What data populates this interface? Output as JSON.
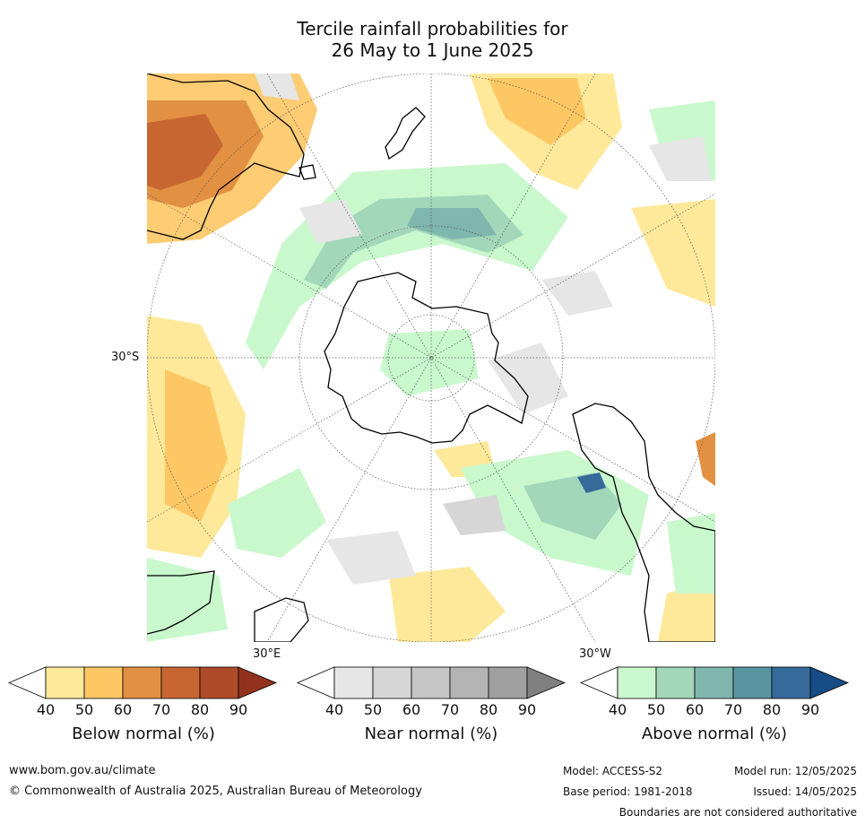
{
  "title_line1": "Tercile rainfall probabilities for",
  "title_line2": "26 May to 1 June 2025",
  "map": {
    "lat_label": "30°S",
    "lon_label_east": "30°E",
    "lon_label_west": "30°W"
  },
  "colorbars": [
    {
      "title": "Below normal (%)",
      "ticks": [
        "40",
        "50",
        "60",
        "70",
        "80",
        "90"
      ],
      "colors": [
        "#ffffff",
        "#fee99a",
        "#fdc764",
        "#e29042",
        "#c86632",
        "#ad4b28",
        "#93321c"
      ]
    },
    {
      "title": "Near normal (%)",
      "ticks": [
        "40",
        "50",
        "60",
        "70",
        "80",
        "90"
      ],
      "colors": [
        "#ffffff",
        "#e6e6e6",
        "#d6d6d6",
        "#c6c6c6",
        "#b4b4b4",
        "#a0a0a0",
        "#808080"
      ]
    },
    {
      "title": "Above normal (%)",
      "ticks": [
        "40",
        "50",
        "60",
        "70",
        "80",
        "90"
      ],
      "colors": [
        "#ffffff",
        "#c9f8cd",
        "#a3d7ba",
        "#7fb6ae",
        "#5b94a1",
        "#366a9b",
        "#164b85"
      ]
    }
  ],
  "footer": {
    "url": "www.bom.gov.au/climate",
    "copyright": "© Commonwealth of Australia 2025, Australian Bureau of Meteorology",
    "model": "Model: ACCESS-S2",
    "model_run": "Model run: 12/05/2025",
    "base_period": "Base period: 1981-2018",
    "issued": "Issued: 14/05/2025",
    "disclaimer": "Boundaries are not considered authoritative"
  }
}
